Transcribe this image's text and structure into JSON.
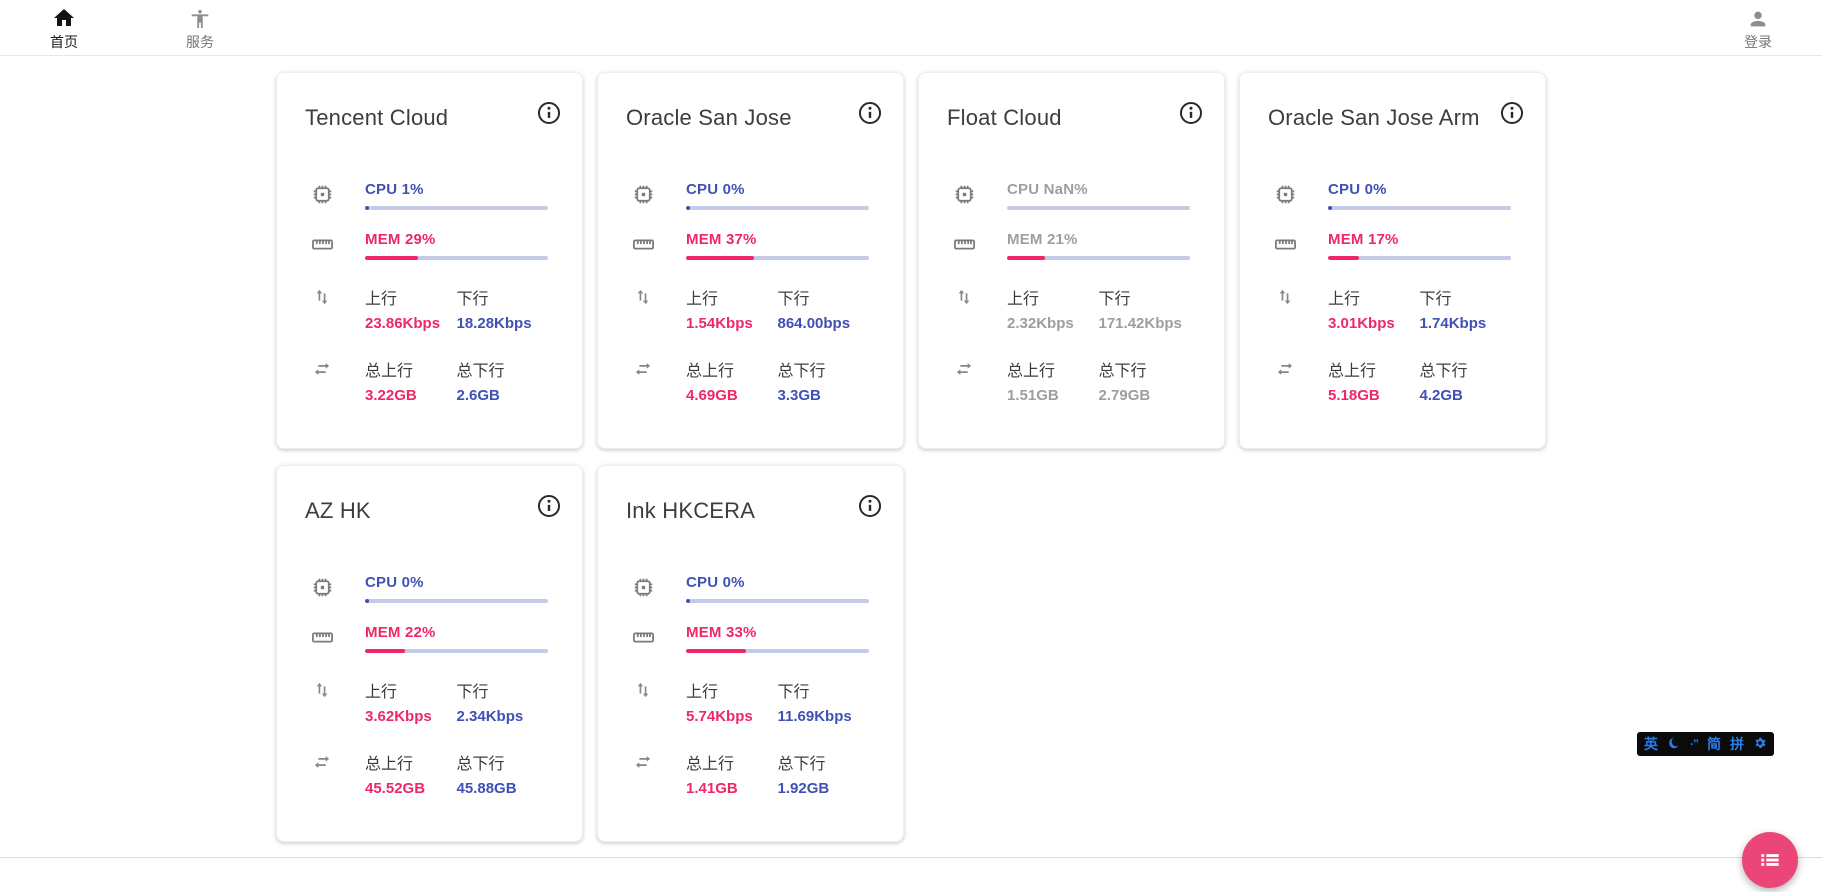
{
  "nav": {
    "home": {
      "label": "首页",
      "active": true
    },
    "services": {
      "label": "服务",
      "active": false
    },
    "login": {
      "label": "登录"
    }
  },
  "labels": {
    "up": "上行",
    "down": "下行",
    "total_up": "总上行",
    "total_down": "总下行"
  },
  "servers": [
    {
      "name": "Tencent Cloud",
      "cpu": "CPU 1%",
      "cpu_pct": 1,
      "mem": "MEM 29%",
      "mem_pct": 29,
      "up": "23.86Kbps",
      "down": "18.28Kbps",
      "total_up": "3.22GB",
      "total_down": "2.6GB",
      "offline": false
    },
    {
      "name": "Oracle San Jose",
      "cpu": "CPU 0%",
      "cpu_pct": 0,
      "mem": "MEM 37%",
      "mem_pct": 37,
      "up": "1.54Kbps",
      "down": "864.00bps",
      "total_up": "4.69GB",
      "total_down": "3.3GB",
      "offline": false
    },
    {
      "name": "Float Cloud",
      "cpu": "CPU NaN%",
      "cpu_pct": null,
      "mem": "MEM 21%",
      "mem_pct": 21,
      "up": "2.32Kbps",
      "down": "171.42Kbps",
      "total_up": "1.51GB",
      "total_down": "2.79GB",
      "offline": true
    },
    {
      "name": "Oracle San Jose Arm",
      "cpu": "CPU 0%",
      "cpu_pct": 0,
      "mem": "MEM 17%",
      "mem_pct": 17,
      "up": "3.01Kbps",
      "down": "1.74Kbps",
      "total_up": "5.18GB",
      "total_down": "4.2GB",
      "offline": false
    },
    {
      "name": "AZ HK",
      "cpu": "CPU 0%",
      "cpu_pct": 0,
      "mem": "MEM 22%",
      "mem_pct": 22,
      "up": "3.62Kbps",
      "down": "2.34Kbps",
      "total_up": "45.52GB",
      "total_down": "45.88GB",
      "offline": false
    },
    {
      "name": "Ink HKCERA",
      "cpu": "CPU 0%",
      "cpu_pct": 0,
      "mem": "MEM 33%",
      "mem_pct": 33,
      "up": "5.74Kbps",
      "down": "11.69Kbps",
      "total_up": "1.41GB",
      "total_down": "1.92GB",
      "offline": false
    }
  ],
  "ime": {
    "lang": "英",
    "punct": "·”",
    "simplified": "简",
    "pinyin": "拼"
  },
  "colors": {
    "accent_blue": "#3f51b5",
    "accent_pink": "#f02765",
    "bar_track": "#c5cae9",
    "offline_gray": "#9e9e9e",
    "fab_pink": "#ec4679",
    "ime_blue": "#2b7de9"
  }
}
